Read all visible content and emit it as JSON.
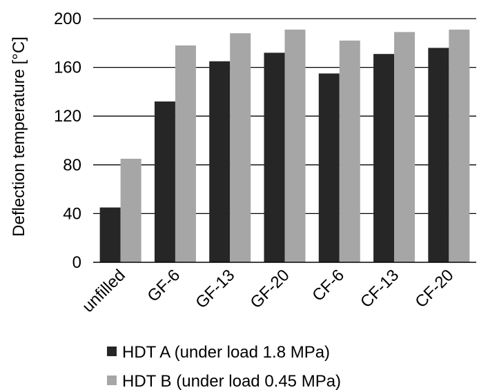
{
  "chart_data": {
    "type": "bar",
    "title": "",
    "xlabel": "",
    "ylabel": "Deflection temperature [°C]",
    "ylim": [
      0,
      200
    ],
    "yticks": [
      0,
      40,
      80,
      120,
      160,
      200
    ],
    "grid": true,
    "legend_position": "bottom",
    "categories": [
      "unfilled",
      "GF-6",
      "GF-13",
      "GF-20",
      "CF-6",
      "CF-13",
      "CF-20"
    ],
    "series": [
      {
        "name": "HDT A (under load 1.8 MPa)",
        "color": "#262626",
        "values": [
          45,
          132,
          165,
          172,
          155,
          171,
          176
        ]
      },
      {
        "name": "HDT B (under load 0.45 MPa)",
        "color": "#a6a6a6",
        "values": [
          85,
          178,
          188,
          191,
          182,
          189,
          191
        ]
      }
    ]
  }
}
